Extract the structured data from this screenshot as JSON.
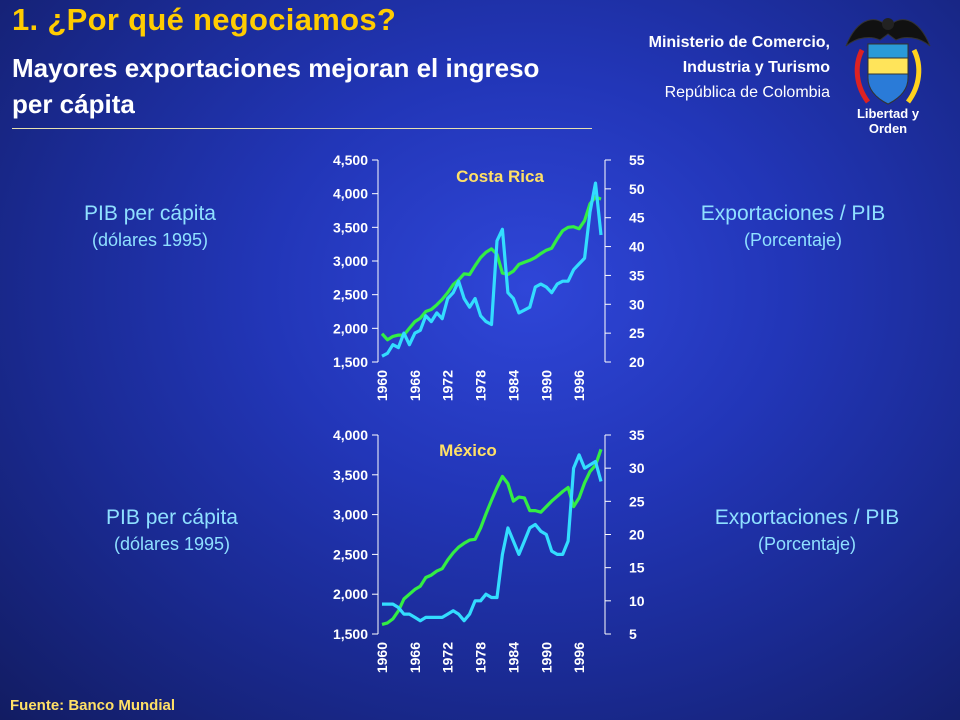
{
  "header": {
    "title": "1. ¿Por qué negociamos?",
    "subtitle": "Mayores exportaciones mejoran el ingreso per cápita"
  },
  "ministry": {
    "line1": "Ministerio de Comercio,",
    "line2": "Industria y Turismo",
    "country": "República de Colombia",
    "motto": "Libertad y Orden"
  },
  "labels": {
    "left_title": "PIB per cápita",
    "left_sub": "(dólares 1995)",
    "right_title": "Exportaciones / PIB",
    "right_sub": "(Porcentaje)"
  },
  "source": "Fuente: Banco Mundial",
  "colors": {
    "background": "#2236b8",
    "gdp_line": "#33ee44",
    "exports_line": "#33ddff",
    "title": "#ffcc00",
    "country_label": "#ffe066"
  },
  "chart_data": [
    {
      "type": "line",
      "title": "Costa Rica",
      "x_ticks": [
        "1960",
        "1966",
        "1972",
        "1978",
        "1984",
        "1990",
        "1996"
      ],
      "left_ylim": [
        1500,
        4500
      ],
      "left_ticks": [
        "1,500",
        "2,000",
        "2,500",
        "3,000",
        "3,500",
        "4,000",
        "4,500"
      ],
      "right_ylim": [
        20,
        55
      ],
      "right_ticks": [
        "20",
        "25",
        "30",
        "35",
        "40",
        "45",
        "50",
        "55"
      ],
      "x": [
        1960,
        1961,
        1962,
        1963,
        1964,
        1965,
        1966,
        1967,
        1968,
        1969,
        1970,
        1971,
        1972,
        1973,
        1974,
        1975,
        1976,
        1977,
        1978,
        1979,
        1980,
        1981,
        1982,
        1983,
        1984,
        1985,
        1986,
        1987,
        1988,
        1989,
        1990,
        1991,
        1992,
        1993,
        1994,
        1995,
        1996,
        1997,
        1998,
        1999,
        2000
      ],
      "series": [
        {
          "axis": "left",
          "color": "#33ee44",
          "values": [
            1920,
            1830,
            1880,
            1900,
            1900,
            2000,
            2100,
            2150,
            2250,
            2280,
            2350,
            2430,
            2530,
            2650,
            2720,
            2810,
            2800,
            2930,
            3050,
            3130,
            3180,
            3100,
            2820,
            2800,
            2850,
            2950,
            2980,
            3010,
            3050,
            3110,
            3160,
            3190,
            3330,
            3450,
            3500,
            3510,
            3480,
            3600,
            3850,
            3950,
            3920
          ]
        },
        {
          "axis": "right",
          "color": "#33ddff",
          "values": [
            21,
            21.5,
            23,
            22.5,
            25,
            23,
            25,
            25.5,
            28,
            27,
            28.5,
            27.5,
            31,
            32,
            34,
            31,
            29.5,
            31,
            28,
            27,
            26.5,
            41,
            43,
            32,
            31,
            28.5,
            29,
            29.5,
            33,
            33.5,
            33,
            32,
            33.5,
            34,
            34,
            36,
            37,
            38,
            46,
            51,
            42
          ]
        }
      ]
    },
    {
      "type": "line",
      "title": "México",
      "x_ticks": [
        "1960",
        "1966",
        "1972",
        "1978",
        "1984",
        "1990",
        "1996"
      ],
      "left_ylim": [
        1500,
        4000
      ],
      "left_ticks": [
        "1,500",
        "2,000",
        "2,500",
        "3,000",
        "3,500",
        "4,000"
      ],
      "right_ylim": [
        5,
        35
      ],
      "right_ticks": [
        "5",
        "10",
        "15",
        "20",
        "25",
        "30",
        "35"
      ],
      "x": [
        1960,
        1961,
        1962,
        1963,
        1964,
        1965,
        1966,
        1967,
        1968,
        1969,
        1970,
        1971,
        1972,
        1973,
        1974,
        1975,
        1976,
        1977,
        1978,
        1979,
        1980,
        1981,
        1982,
        1983,
        1984,
        1985,
        1986,
        1987,
        1988,
        1989,
        1990,
        1991,
        1992,
        1993,
        1994,
        1995,
        1996,
        1997,
        1998,
        1999,
        2000
      ],
      "series": [
        {
          "axis": "left",
          "color": "#33ee44",
          "values": [
            1620,
            1640,
            1690,
            1790,
            1940,
            2000,
            2060,
            2100,
            2210,
            2240,
            2290,
            2320,
            2430,
            2520,
            2590,
            2640,
            2680,
            2690,
            2830,
            3010,
            3180,
            3340,
            3480,
            3390,
            3170,
            3220,
            3210,
            3050,
            3050,
            3030,
            3100,
            3170,
            3230,
            3290,
            3340,
            3100,
            3210,
            3400,
            3540,
            3620,
            3820
          ]
        },
        {
          "axis": "right",
          "color": "#33ddff",
          "values": [
            9.5,
            9.5,
            9.5,
            9,
            8,
            8,
            7.5,
            7,
            7.5,
            7.5,
            7.5,
            7.5,
            8,
            8.5,
            8,
            7,
            8,
            10,
            10,
            11,
            10.5,
            10.5,
            17,
            21,
            19,
            17,
            19,
            21,
            21.5,
            20.5,
            20,
            17.5,
            17,
            17,
            19,
            30,
            32,
            30,
            30.5,
            31,
            28
          ]
        }
      ]
    }
  ]
}
